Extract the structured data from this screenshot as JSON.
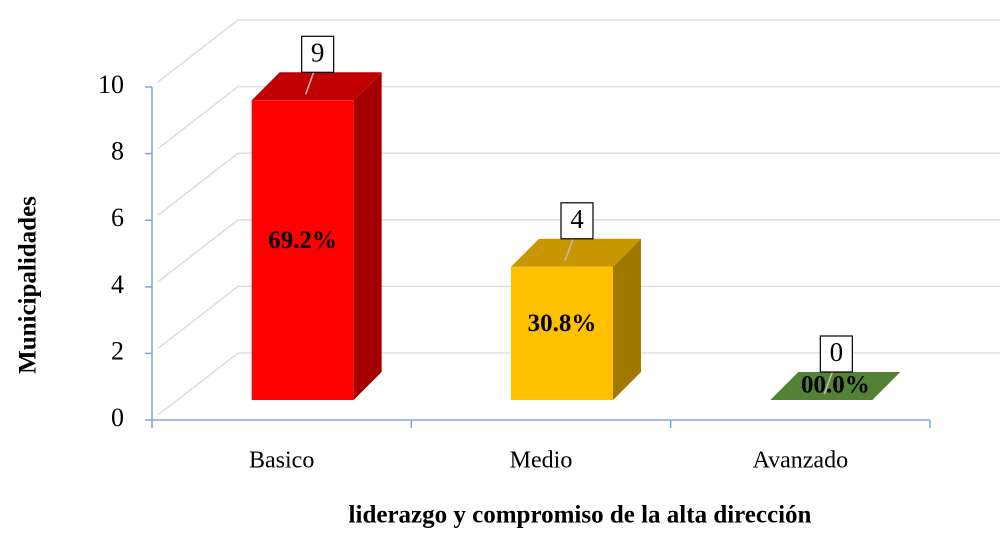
{
  "chart_data": {
    "type": "bar3d",
    "x_label": "liderazgo y compromiso de la alta dirección",
    "y_label": "Municipalidades",
    "categories": [
      "Basico",
      "Medio",
      "Avanzado"
    ],
    "values": [
      9,
      4,
      0
    ],
    "percentages": [
      69.2,
      30.8,
      0
    ],
    "percentage_labels": [
      "69.2%",
      "30.8%",
      "00.0%"
    ],
    "colors": [
      {
        "front": "#ff0000",
        "side": "#a50000",
        "top": "#c00000"
      },
      {
        "front": "#ffc000",
        "side": "#a07800",
        "top": "#c89600"
      },
      {
        "front": "#70ad47",
        "side": "#3f6a26",
        "top": "#548235"
      }
    ],
    "ylim": [
      0,
      10
    ],
    "yticks": [
      0,
      2,
      4,
      6,
      8,
      10
    ],
    "grid": true
  }
}
